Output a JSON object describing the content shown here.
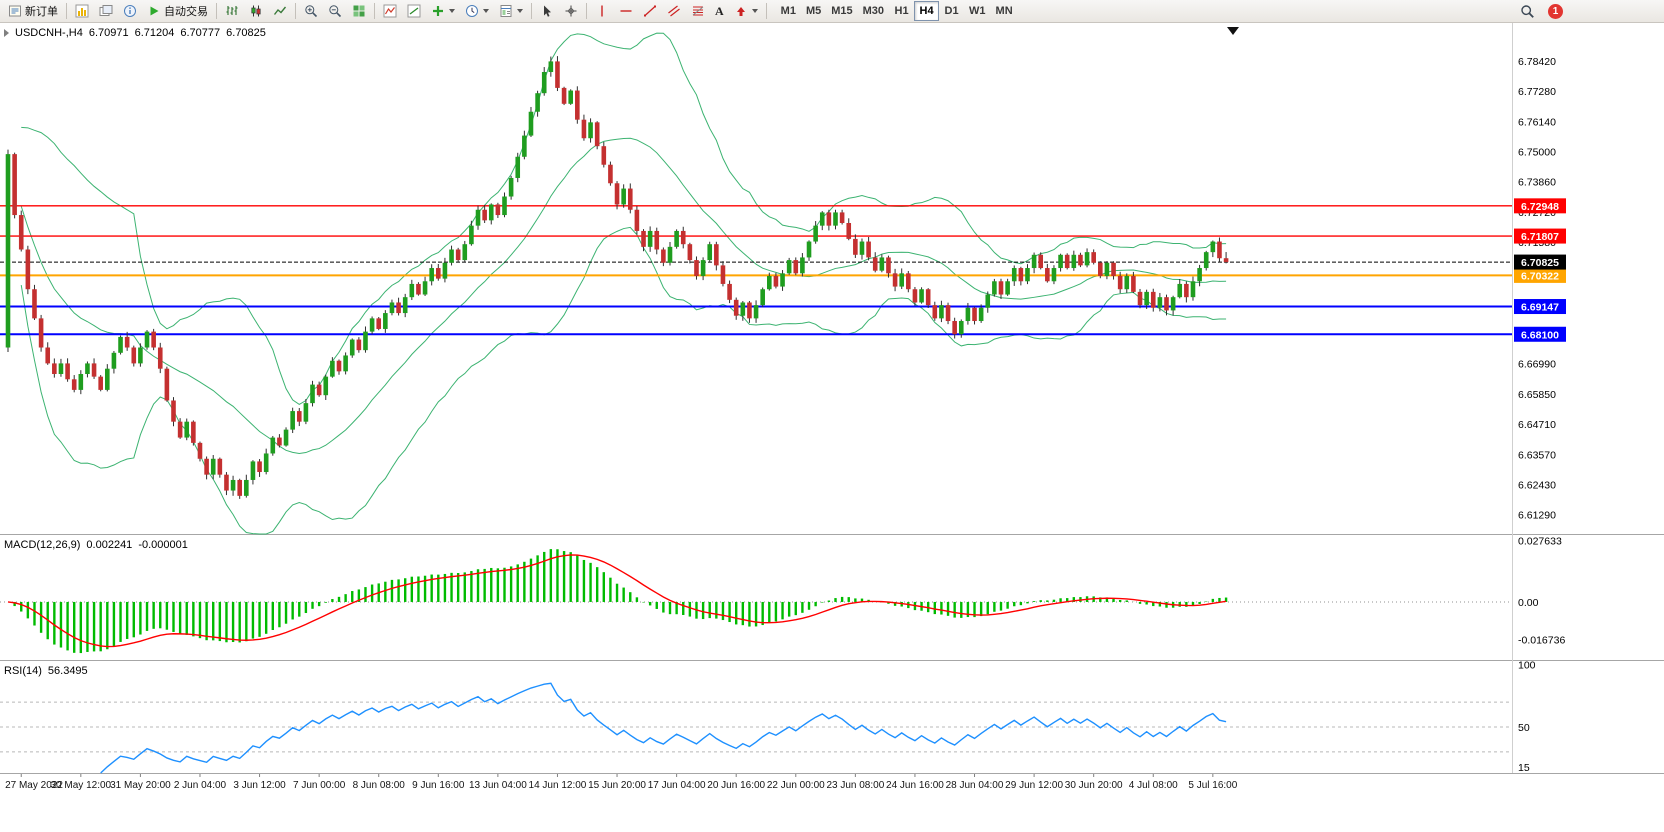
{
  "toolbar": {
    "new_order_label": "新订单",
    "auto_trading_label": "自动交易",
    "text_tool_label": "A",
    "timeframes": [
      "M1",
      "M5",
      "M15",
      "M30",
      "H1",
      "H4",
      "D1",
      "W1",
      "MN"
    ],
    "active_timeframe": "H4",
    "notification_count": "1"
  },
  "chart": {
    "title_symbol": "USDCNH-,H4",
    "title_open": "6.70971",
    "title_high": "6.71204",
    "title_low": "6.70777",
    "title_close": "6.70825",
    "price_axis_labels": [
      "6.78420",
      "6.77280",
      "6.76140",
      "6.75000",
      "6.73860",
      "6.72720",
      "6.71580",
      "6.66990",
      "6.65850",
      "6.64710",
      "6.63570",
      "6.62430",
      "6.61290"
    ]
  },
  "macd": {
    "title": "MACD(12,26,9)",
    "value": "0.002241",
    "value2": "-0.000001",
    "axis": [
      "0.027633",
      "0.00",
      "-0.016736"
    ]
  },
  "rsi": {
    "title": "RSI(14)",
    "value": "56.3495",
    "axis": [
      "100",
      "50",
      "15"
    ]
  },
  "time_axis": {
    "labels": [
      "27 May 2022",
      "30 May 12:00",
      "31 May 20:00",
      "2 Jun 04:00",
      "3 Jun 12:00",
      "7 Jun 00:00",
      "8 Jun 08:00",
      "9 Jun 16:00",
      "13 Jun 04:00",
      "14 Jun 12:00",
      "15 Jun 20:00",
      "17 Jun 04:00",
      "20 Jun 16:00",
      "22 Jun 00:00",
      "23 Jun 08:00",
      "24 Jun 16:00",
      "28 Jun 04:00",
      "29 Jun 12:00",
      "30 Jun 20:00",
      "4 Jul 08:00",
      "5 Jul 16:00"
    ]
  },
  "chart_data": {
    "type": "candlestick",
    "symbol": "USDCNH-",
    "timeframe": "H4",
    "price_range": [
      6.6056,
      6.7985
    ],
    "first_open": 6.676,
    "closes": [
      6.749,
      6.726,
      6.713,
      6.698,
      6.687,
      6.676,
      6.67,
      6.666,
      6.67,
      6.664,
      6.66,
      6.666,
      6.67,
      6.665,
      6.66,
      6.668,
      6.674,
      6.68,
      6.676,
      6.67,
      6.676,
      6.682,
      6.676,
      6.668,
      6.656,
      6.648,
      6.642,
      6.648,
      6.64,
      6.634,
      6.628,
      6.634,
      6.628,
      6.622,
      6.626,
      6.62,
      6.626,
      6.633,
      6.629,
      6.636,
      6.642,
      6.639,
      6.645,
      6.652,
      6.648,
      6.655,
      6.662,
      6.658,
      6.665,
      6.671,
      6.667,
      6.673,
      6.679,
      6.675,
      6.682,
      6.687,
      6.683,
      6.689,
      6.693,
      6.689,
      6.695,
      6.7,
      6.696,
      6.701,
      6.706,
      6.702,
      6.708,
      6.713,
      6.709,
      6.715,
      6.722,
      6.728,
      6.724,
      6.73,
      6.726,
      6.733,
      6.74,
      6.748,
      6.756,
      6.765,
      6.772,
      6.78,
      6.784,
      6.774,
      6.768,
      6.773,
      6.762,
      6.755,
      6.761,
      6.752,
      6.745,
      6.738,
      6.73,
      6.736,
      6.728,
      6.72,
      6.714,
      6.72,
      6.713,
      6.708,
      6.714,
      6.72,
      6.715,
      6.709,
      6.703,
      6.709,
      6.715,
      6.707,
      6.7,
      6.694,
      6.688,
      6.693,
      6.687,
      6.692,
      6.698,
      6.703,
      6.699,
      6.704,
      6.709,
      6.704,
      6.71,
      6.716,
      6.722,
      6.727,
      6.722,
      6.727,
      6.723,
      6.717,
      6.711,
      6.716,
      6.71,
      6.705,
      6.71,
      6.704,
      6.699,
      6.704,
      6.698,
      6.693,
      6.698,
      6.692,
      6.687,
      6.692,
      6.686,
      6.681,
      6.686,
      6.691,
      6.686,
      6.691,
      6.696,
      6.701,
      6.696,
      6.701,
      6.706,
      6.701,
      6.706,
      6.711,
      6.706,
      6.701,
      6.706,
      6.711,
      6.706,
      6.711,
      6.707,
      6.712,
      6.708,
      6.703,
      6.708,
      6.703,
      6.698,
      6.703,
      6.697,
      6.692,
      6.697,
      6.691,
      6.695,
      6.69,
      6.695,
      6.7,
      6.695,
      6.701,
      6.706,
      6.712,
      6.716,
      6.7097,
      6.70825
    ],
    "last_candle": {
      "o": 6.70971,
      "h": 6.71204,
      "l": 6.70777,
      "c": 6.70825
    },
    "levels": [
      {
        "value": 6.72948,
        "label": "6.72948",
        "color": "#ff0000",
        "width": 1.4
      },
      {
        "value": 6.71807,
        "label": "6.71807",
        "color": "#ff0000",
        "width": 1.4
      },
      {
        "value": 6.70322,
        "label": "6.70322",
        "color": "#ffa500",
        "width": 2
      },
      {
        "value": 6.69147,
        "label": "6.69147",
        "color": "#0000ff",
        "width": 2
      },
      {
        "value": 6.681,
        "label": "6.68100",
        "color": "#0000ff",
        "width": 2
      }
    ],
    "bid_line": {
      "value": 6.70825,
      "label": "6.70825",
      "color": "#000000"
    },
    "indicators": {
      "bollinger": {
        "period": 20,
        "deviation": 2,
        "color": "#3cb371"
      },
      "macd": {
        "fast": 12,
        "slow": 26,
        "signal": 9,
        "histogram_color": "#00bb00",
        "signal_color": "#ff0000",
        "range": [
          -0.026,
          0.03
        ]
      },
      "rsi": {
        "period": 14,
        "color": "#1e90ff",
        "range": [
          13,
          103
        ],
        "levels": [
          70,
          50,
          30
        ]
      }
    },
    "colors": {
      "up": "#1f9d1f",
      "down": "#c43030",
      "wick": "#2f2f2f"
    }
  }
}
